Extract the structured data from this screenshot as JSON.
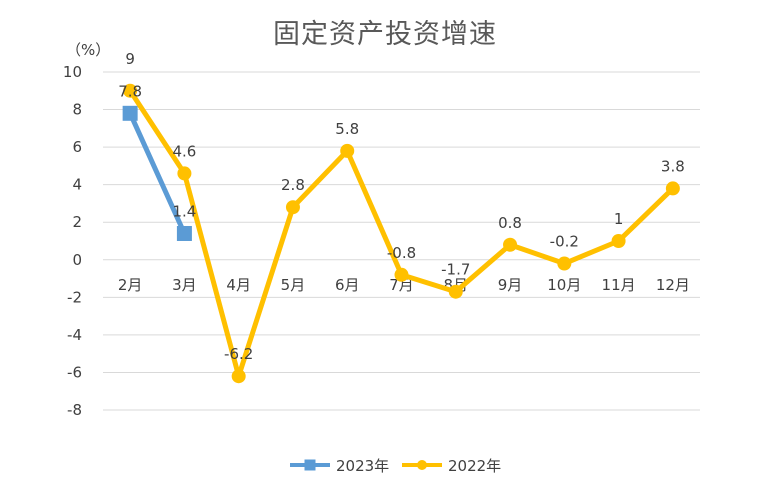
{
  "chart_data": {
    "type": "line",
    "title": "固定资产投资增速",
    "unit_label": "（%）",
    "categories": [
      "2月",
      "3月",
      "4月",
      "5月",
      "6月",
      "7月",
      "8月",
      "9月",
      "10月",
      "11月",
      "12月"
    ],
    "series": [
      {
        "name": "2023年",
        "color": "#5B9BD5",
        "marker": "square",
        "values": [
          7.8,
          1.4,
          null,
          null,
          null,
          null,
          null,
          null,
          null,
          null,
          null
        ],
        "labels": [
          "7.8",
          "1.4",
          null,
          null,
          null,
          null,
          null,
          null,
          null,
          null,
          null
        ]
      },
      {
        "name": "2022年",
        "color": "#FFC000",
        "marker": "circle",
        "values": [
          9,
          4.6,
          -6.2,
          2.8,
          5.8,
          -0.8,
          -1.7,
          0.8,
          -0.2,
          1,
          3.8
        ],
        "labels": [
          "9",
          "4.6",
          "-6.2",
          "2.8",
          "5.8",
          "-0.8",
          "-1.7",
          "0.8",
          "-0.2",
          "1",
          "3.8"
        ]
      }
    ],
    "ylim": [
      -8,
      10
    ],
    "yticks": [
      10,
      8,
      6,
      4,
      2,
      0,
      -2,
      -4,
      -6,
      -8
    ],
    "ytick_labels": [
      "10",
      "8",
      "6",
      "4",
      "2",
      "0",
      "-2",
      "-4",
      "-6",
      "-8"
    ],
    "grid": true,
    "legend_position": "bottom"
  }
}
